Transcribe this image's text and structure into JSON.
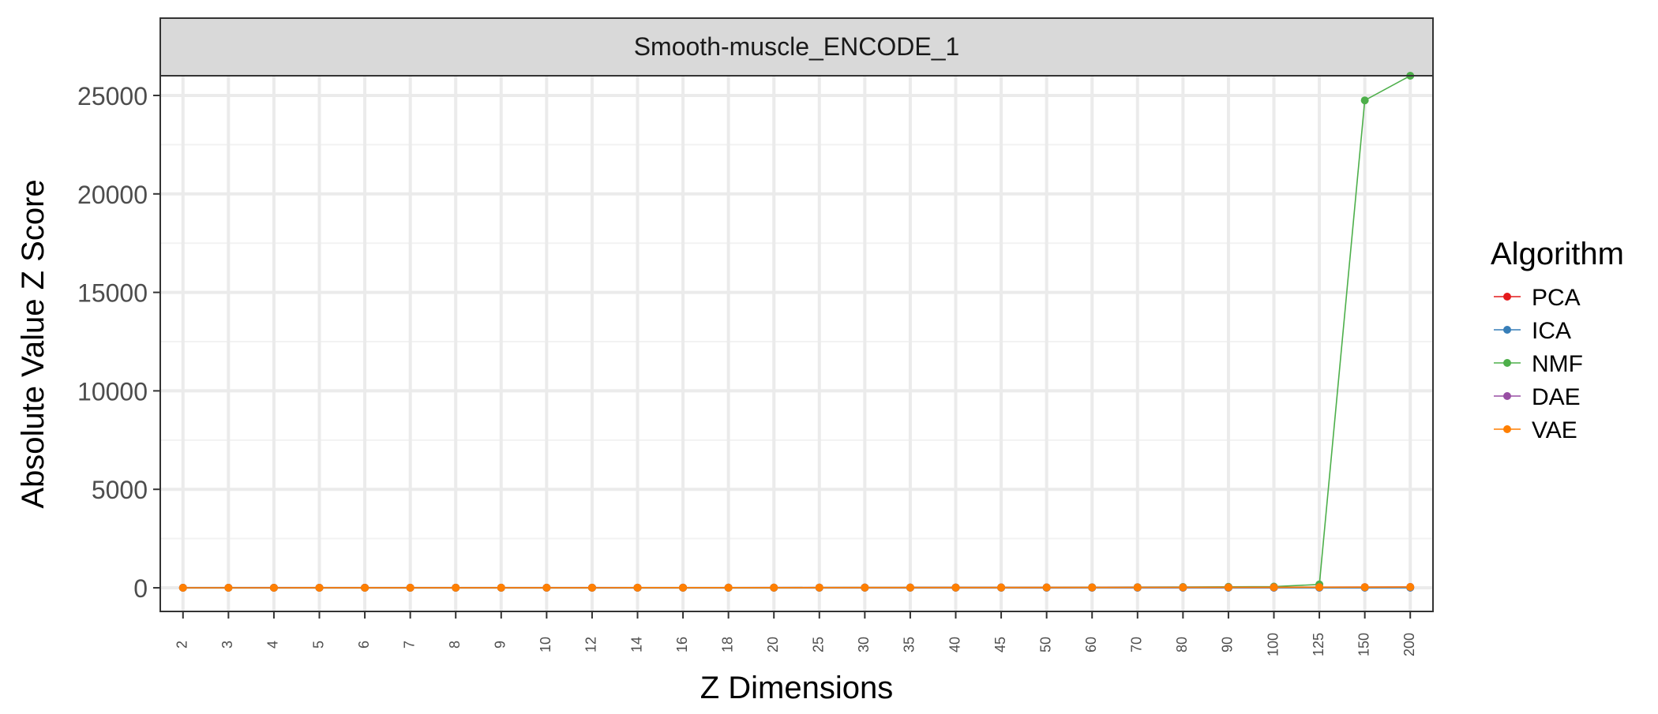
{
  "chart_data": {
    "type": "line",
    "facet_title": "Smooth-muscle_ENCODE_1",
    "xlabel": "Z Dimensions",
    "ylabel": "Absolute Value Z Score",
    "x": [
      "2",
      "3",
      "4",
      "5",
      "6",
      "7",
      "8",
      "9",
      "10",
      "12",
      "14",
      "16",
      "18",
      "20",
      "25",
      "30",
      "35",
      "40",
      "45",
      "50",
      "60",
      "70",
      "80",
      "90",
      "100",
      "125",
      "150",
      "200"
    ],
    "ylim": [
      -1200,
      26000
    ],
    "yticks": [
      0,
      5000,
      10000,
      15000,
      20000,
      25000
    ],
    "ytick_labels": [
      "0",
      "5000",
      "10000",
      "15000",
      "20000",
      "25000"
    ],
    "grid": true,
    "legend": {
      "title": "Algorithm",
      "position": "right"
    },
    "series": [
      {
        "name": "PCA",
        "color": "#e41a1c",
        "values": [
          1,
          1,
          2,
          2,
          2,
          3,
          3,
          3,
          4,
          4,
          4,
          4,
          5,
          5,
          5,
          6,
          6,
          6,
          7,
          7,
          8,
          8,
          8,
          9,
          9,
          10,
          11,
          12
        ]
      },
      {
        "name": "ICA",
        "color": "#377eb8",
        "values": [
          2,
          2,
          2,
          3,
          3,
          3,
          3,
          3,
          3,
          4,
          4,
          4,
          4,
          4,
          4,
          5,
          5,
          5,
          5,
          5,
          5,
          5,
          5,
          5,
          6,
          6,
          6,
          6
        ]
      },
      {
        "name": "NMF",
        "color": "#4daf4a",
        "values": [
          1,
          2,
          2,
          3,
          3,
          4,
          5,
          5,
          6,
          7,
          8,
          9,
          10,
          11,
          13,
          15,
          17,
          19,
          21,
          23,
          28,
          33,
          40,
          50,
          60,
          170,
          24750,
          26000
        ]
      },
      {
        "name": "DAE",
        "color": "#984ea3",
        "values": [
          3,
          3,
          4,
          4,
          5,
          5,
          6,
          6,
          7,
          8,
          9,
          10,
          11,
          12,
          13,
          15,
          16,
          18,
          20,
          21,
          23,
          25,
          27,
          29,
          31,
          35,
          39,
          45
        ]
      },
      {
        "name": "VAE",
        "color": "#ff7f00",
        "values": [
          2,
          3,
          3,
          4,
          4,
          5,
          5,
          6,
          6,
          7,
          8,
          8,
          9,
          10,
          11,
          12,
          13,
          14,
          15,
          16,
          18,
          20,
          22,
          24,
          26,
          30,
          34,
          40
        ]
      }
    ]
  }
}
